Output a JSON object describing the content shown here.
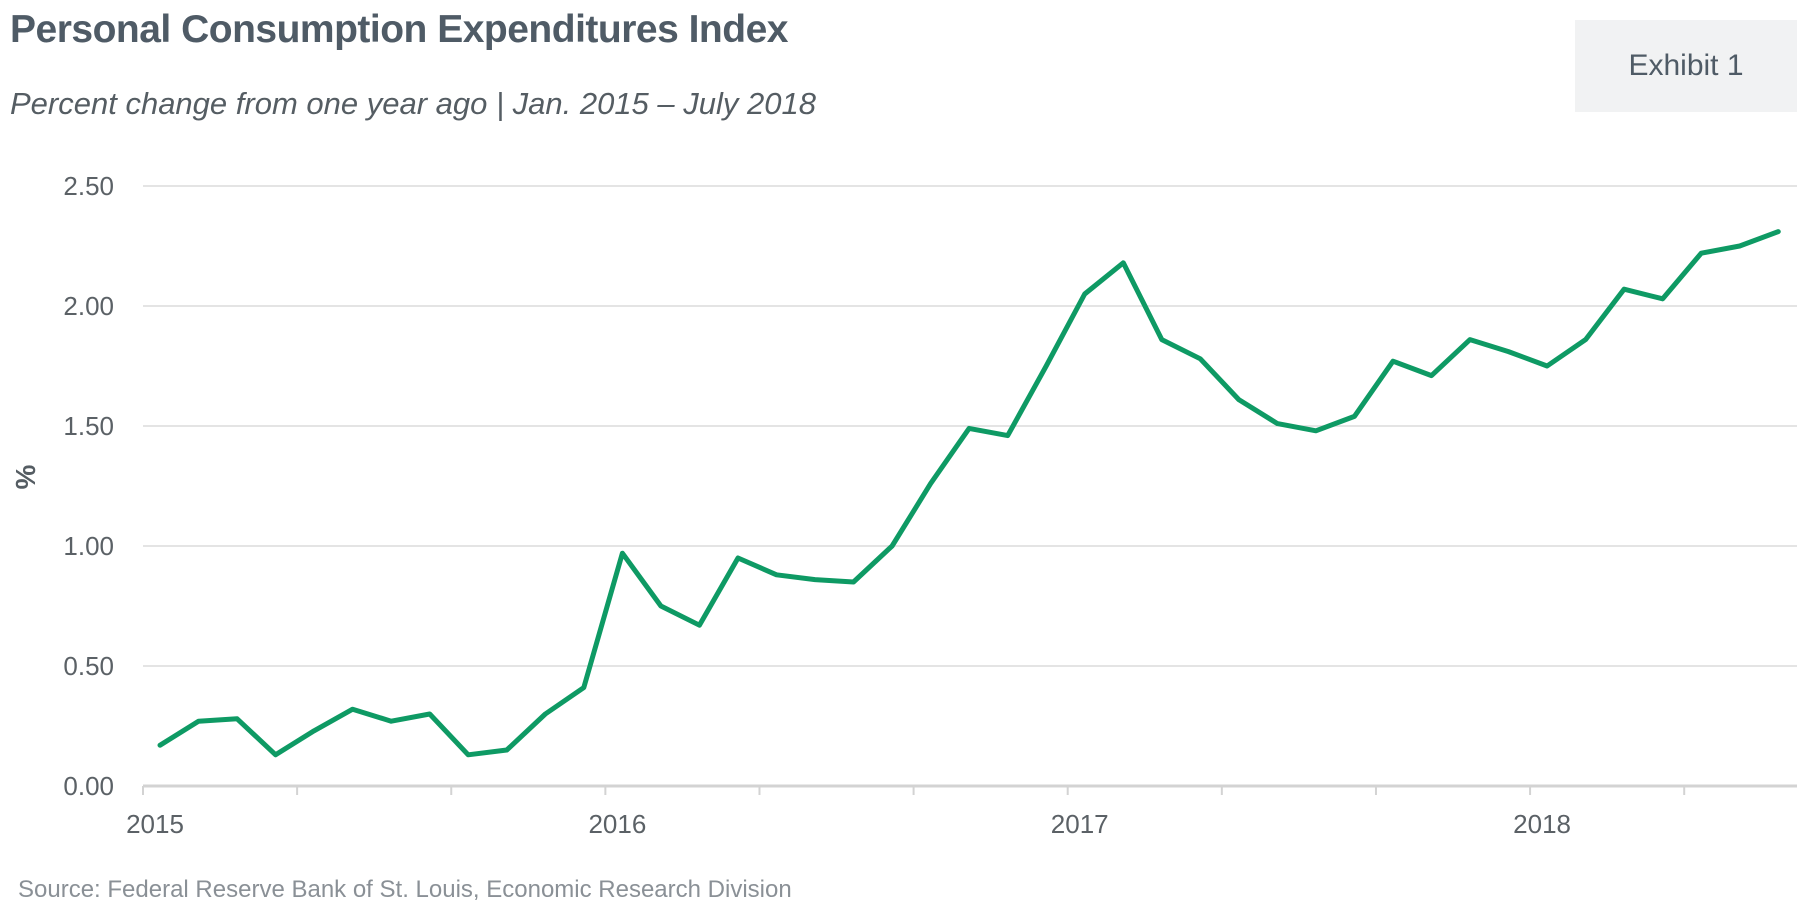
{
  "header": {
    "title": "Personal Consumption Expenditures Index",
    "subtitle": "Percent change from one year ago  |  Jan. 2015 – July 2018",
    "exhibit": "Exhibit 1"
  },
  "footer": {
    "source": "Source: Federal Reserve Bank of St. Louis, Economic Research Division"
  },
  "colors": {
    "line": "#0e9a64",
    "grid": "#dcdcdc",
    "axis": "#d3d3d3"
  },
  "chart_data": {
    "type": "line",
    "title": "Personal Consumption Expenditures Index",
    "subtitle": "Percent change from one year ago  |  Jan. 2015 – July 2018",
    "xlabel": "",
    "ylabel": "%",
    "ylim": [
      0,
      2.5
    ],
    "yticks": [
      "0.00",
      "0.50",
      "1.00",
      "1.50",
      "2.00",
      "2.50"
    ],
    "ytick_values": [
      0,
      0.5,
      1.0,
      1.5,
      2.0,
      2.5
    ],
    "xticks": [
      "2015",
      "2016",
      "2017",
      "2018"
    ],
    "xtick_dates": [
      "2015-01",
      "2016-01",
      "2017-01",
      "2018-01"
    ],
    "grid": true,
    "legend": "none",
    "series": [
      {
        "x": [
          "2015-01",
          "2015-02",
          "2015-03",
          "2015-04",
          "2015-05",
          "2015-06",
          "2015-07",
          "2015-08",
          "2015-09",
          "2015-10",
          "2015-11",
          "2015-12",
          "2016-01",
          "2016-02",
          "2016-03",
          "2016-04",
          "2016-05",
          "2016-06",
          "2016-07",
          "2016-08",
          "2016-09",
          "2016-10",
          "2016-11",
          "2016-12",
          "2017-01",
          "2017-02",
          "2017-03",
          "2017-04",
          "2017-05",
          "2017-06",
          "2017-07",
          "2017-08",
          "2017-09",
          "2017-10",
          "2017-11",
          "2017-12",
          "2018-01",
          "2018-02",
          "2018-03",
          "2018-04",
          "2018-05",
          "2018-06",
          "2018-07"
        ],
        "values": [
          0.17,
          0.27,
          0.28,
          0.13,
          0.23,
          0.32,
          0.27,
          0.3,
          0.13,
          0.15,
          0.3,
          0.41,
          0.97,
          0.75,
          0.67,
          0.95,
          0.88,
          0.86,
          0.85,
          1.0,
          1.26,
          1.49,
          1.46,
          1.75,
          2.05,
          2.18,
          1.86,
          1.78,
          1.61,
          1.51,
          1.48,
          1.54,
          1.77,
          1.71,
          1.86,
          1.81,
          1.75,
          1.86,
          2.07,
          2.03,
          2.22,
          2.25,
          2.31
        ]
      }
    ]
  }
}
